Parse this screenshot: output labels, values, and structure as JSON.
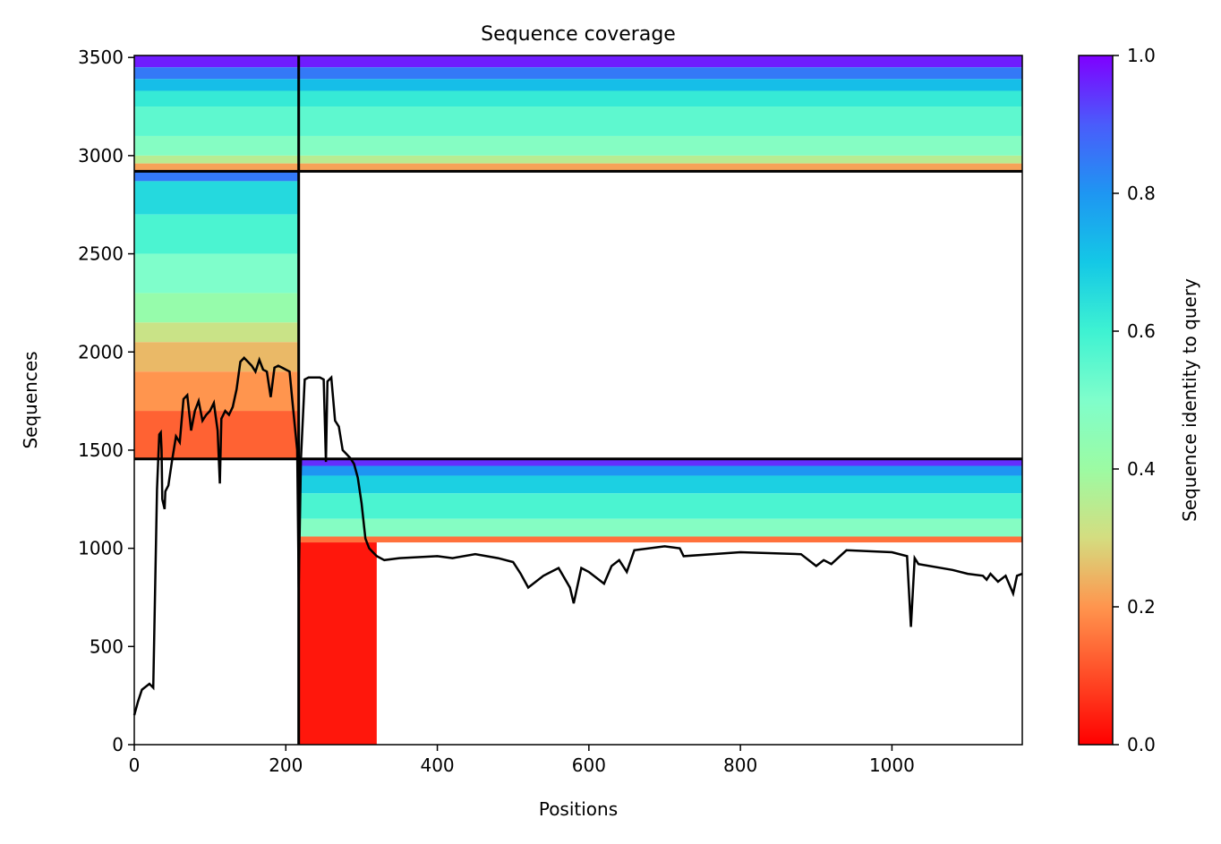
{
  "chart_data": {
    "type": "heatmap",
    "title": "Sequence coverage",
    "xlabel": "Positions",
    "ylabel": "Sequences",
    "xlim": [
      0,
      1172
    ],
    "ylim": [
      0,
      3510
    ],
    "xticks": [
      0,
      200,
      400,
      600,
      800,
      1000
    ],
    "yticks": [
      0,
      500,
      1000,
      1500,
      2000,
      2500,
      3000,
      3500
    ],
    "colorbar": {
      "label": "Sequence identity to query",
      "range": [
        0.0,
        1.0
      ],
      "ticks": [
        "0.0",
        "0.2",
        "0.4",
        "0.6",
        "0.8",
        "1.0"
      ],
      "colormap": "rainbow"
    },
    "divider_lines": {
      "vertical_x": [
        217
      ],
      "horizontal_y": [
        1455,
        2920
      ]
    },
    "blocks": [
      {
        "name": "block-top-full-length",
        "x_range": [
          0,
          1172
        ],
        "y_range": [
          2920,
          3510
        ],
        "identity_bands": [
          {
            "y": [
              3450,
              3510
            ],
            "identity": 0.97
          },
          {
            "y": [
              3390,
              3450
            ],
            "identity": 0.85
          },
          {
            "y": [
              3330,
              3390
            ],
            "identity": 0.72
          },
          {
            "y": [
              3250,
              3330
            ],
            "identity": 0.62
          },
          {
            "y": [
              3100,
              3250
            ],
            "identity": 0.55
          },
          {
            "y": [
              3000,
              3100
            ],
            "identity": 0.48
          },
          {
            "y": [
              2960,
              3000
            ],
            "identity": 0.35
          },
          {
            "y": [
              2920,
              2960
            ],
            "identity": 0.22
          }
        ]
      },
      {
        "name": "block-middle-nterm",
        "x_range": [
          0,
          217
        ],
        "y_range": [
          1455,
          2920
        ],
        "identity_bands": [
          {
            "y": [
              2870,
              2920
            ],
            "identity": 0.85
          },
          {
            "y": [
              2700,
              2870
            ],
            "identity": 0.66
          },
          {
            "y": [
              2500,
              2700
            ],
            "identity": 0.58
          },
          {
            "y": [
              2300,
              2500
            ],
            "identity": 0.5
          },
          {
            "y": [
              2150,
              2300
            ],
            "identity": 0.42
          },
          {
            "y": [
              2050,
              2150
            ],
            "identity": 0.32
          },
          {
            "y": [
              1900,
              2050
            ],
            "identity": 0.25
          },
          {
            "y": [
              1700,
              1900
            ],
            "identity": 0.2
          },
          {
            "y": [
              1455,
              1700
            ],
            "identity": 0.13
          }
        ]
      },
      {
        "name": "block-bottom-cterm",
        "x_range": [
          217,
          1172
        ],
        "y_range": [
          0,
          1455
        ],
        "identity_bands": [
          {
            "y": [
              1420,
              1455
            ],
            "identity": 0.95
          },
          {
            "y": [
              1370,
              1420
            ],
            "identity": 0.8
          },
          {
            "y": [
              1280,
              1370
            ],
            "identity": 0.68
          },
          {
            "y": [
              1150,
              1280
            ],
            "identity": 0.58
          },
          {
            "y": [
              1060,
              1150
            ],
            "identity": 0.48
          },
          {
            "y": [
              1030,
              1060
            ],
            "identity": 0.15
          }
        ]
      }
    ],
    "red_low_identity_region": {
      "x_range": [
        217,
        320
      ],
      "y_range": [
        0,
        1030
      ],
      "identity": 0.03
    },
    "coverage_line": {
      "name": "coverage",
      "x": [
        0,
        5,
        10,
        20,
        25,
        30,
        33,
        35,
        36,
        37,
        40,
        41,
        45,
        50,
        55,
        60,
        65,
        70,
        75,
        80,
        85,
        90,
        95,
        100,
        105,
        110,
        113,
        115,
        120,
        125,
        130,
        135,
        140,
        145,
        150,
        155,
        160,
        165,
        170,
        175,
        180,
        185,
        190,
        195,
        200,
        205,
        210,
        215,
        217,
        220,
        225,
        230,
        235,
        240,
        245,
        250,
        253,
        255,
        260,
        265,
        270,
        275,
        280,
        285,
        290,
        295,
        300,
        305,
        310,
        315,
        320,
        330,
        350,
        400,
        420,
        450,
        480,
        500,
        510,
        520,
        540,
        560,
        575,
        580,
        590,
        600,
        620,
        630,
        640,
        650,
        660,
        700,
        720,
        725,
        800,
        880,
        900,
        910,
        920,
        940,
        1000,
        1020,
        1025,
        1030,
        1035,
        1080,
        1100,
        1120,
        1125,
        1130,
        1140,
        1150,
        1160,
        1165,
        1172
      ],
      "y": [
        150,
        220,
        280,
        310,
        290,
        1300,
        1580,
        1590,
        1500,
        1250,
        1200,
        1290,
        1320,
        1450,
        1570,
        1540,
        1760,
        1780,
        1600,
        1700,
        1750,
        1650,
        1680,
        1700,
        1740,
        1600,
        1330,
        1660,
        1700,
        1680,
        1720,
        1810,
        1950,
        1970,
        1950,
        1930,
        1900,
        1960,
        1910,
        1900,
        1770,
        1920,
        1930,
        1920,
        1910,
        1900,
        1700,
        1500,
        800,
        1455,
        1860,
        1870,
        1870,
        1870,
        1870,
        1860,
        1440,
        1850,
        1870,
        1650,
        1620,
        1500,
        1480,
        1460,
        1430,
        1360,
        1230,
        1050,
        1000,
        980,
        960,
        940,
        950,
        960,
        950,
        970,
        950,
        930,
        870,
        800,
        860,
        900,
        800,
        720,
        900,
        880,
        820,
        910,
        940,
        880,
        990,
        1010,
        1000,
        960,
        980,
        970,
        910,
        940,
        920,
        990,
        980,
        960,
        600,
        950,
        920,
        890,
        870,
        860,
        840,
        870,
        830,
        860,
        770,
        860,
        870
      ]
    }
  }
}
